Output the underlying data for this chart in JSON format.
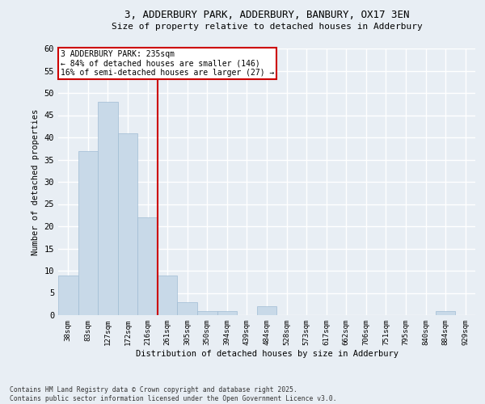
{
  "title_line1": "3, ADDERBURY PARK, ADDERBURY, BANBURY, OX17 3EN",
  "title_line2": "Size of property relative to detached houses in Adderbury",
  "xlabel": "Distribution of detached houses by size in Adderbury",
  "ylabel": "Number of detached properties",
  "categories": [
    "38sqm",
    "83sqm",
    "127sqm",
    "172sqm",
    "216sqm",
    "261sqm",
    "305sqm",
    "350sqm",
    "394sqm",
    "439sqm",
    "484sqm",
    "528sqm",
    "573sqm",
    "617sqm",
    "662sqm",
    "706sqm",
    "751sqm",
    "795sqm",
    "840sqm",
    "884sqm",
    "929sqm"
  ],
  "values": [
    9,
    37,
    48,
    41,
    22,
    9,
    3,
    1,
    1,
    0,
    2,
    0,
    0,
    0,
    0,
    0,
    0,
    0,
    0,
    1,
    0
  ],
  "bar_color": "#c8d9e8",
  "bar_edge_color": "#a0bcd4",
  "background_color": "#e8eef4",
  "grid_color": "#ffffff",
  "property_line_x": 4.5,
  "annotation_line1": "3 ADDERBURY PARK: 235sqm",
  "annotation_line2": "← 84% of detached houses are smaller (146)",
  "annotation_line3": "16% of semi-detached houses are larger (27) →",
  "annotation_box_color": "#ffffff",
  "annotation_box_edge_color": "#cc0000",
  "red_line_color": "#cc0000",
  "ylim": [
    0,
    60
  ],
  "yticks": [
    0,
    5,
    10,
    15,
    20,
    25,
    30,
    35,
    40,
    45,
    50,
    55,
    60
  ],
  "footer_line1": "Contains HM Land Registry data © Crown copyright and database right 2025.",
  "footer_line2": "Contains public sector information licensed under the Open Government Licence v3.0."
}
